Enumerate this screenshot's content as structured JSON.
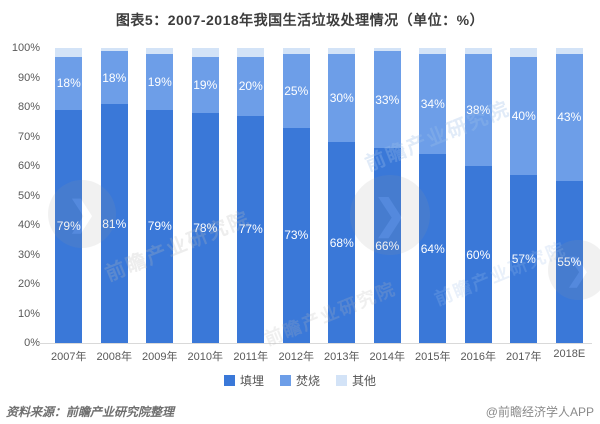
{
  "title": "图表5：2007-2018年我国生活垃圾处理情况（单位：%）",
  "chart_data": {
    "type": "bar",
    "stacked": true,
    "title": "图表5：2007-2018年我国生活垃圾处理情况（单位：%）",
    "categories": [
      "2007年",
      "2008年",
      "2009年",
      "2010年",
      "2011年",
      "2012年",
      "2013年",
      "2014年",
      "2015年",
      "2016年",
      "2017年",
      "2018E"
    ],
    "series": [
      {
        "name": "填埋",
        "color": "#3a78d8",
        "show_labels": true,
        "values": [
          79,
          81,
          79,
          78,
          77,
          73,
          68,
          66,
          64,
          60,
          57,
          55
        ]
      },
      {
        "name": "焚烧",
        "color": "#6d9ee8",
        "show_labels": true,
        "values": [
          18,
          18,
          19,
          19,
          20,
          25,
          30,
          33,
          34,
          38,
          40,
          43
        ]
      },
      {
        "name": "其他",
        "color": "#d3e3f7",
        "show_labels": false,
        "values": [
          3,
          1,
          2,
          3,
          3,
          2,
          2,
          1,
          2,
          2,
          3,
          2
        ]
      }
    ],
    "xlabel": "",
    "ylabel": "",
    "ylim": [
      0,
      100
    ],
    "ytick_step": 10,
    "ytick_suffix": "%",
    "grid": false,
    "legend_position": "bottom",
    "value_label_suffix": "%"
  },
  "footer": {
    "source": "资料来源：前瞻产业研究院整理",
    "credit": "@前瞻经济学人APP"
  },
  "watermark": {
    "text": "前瞻产业研究院",
    "logo_glyph": "❯"
  }
}
